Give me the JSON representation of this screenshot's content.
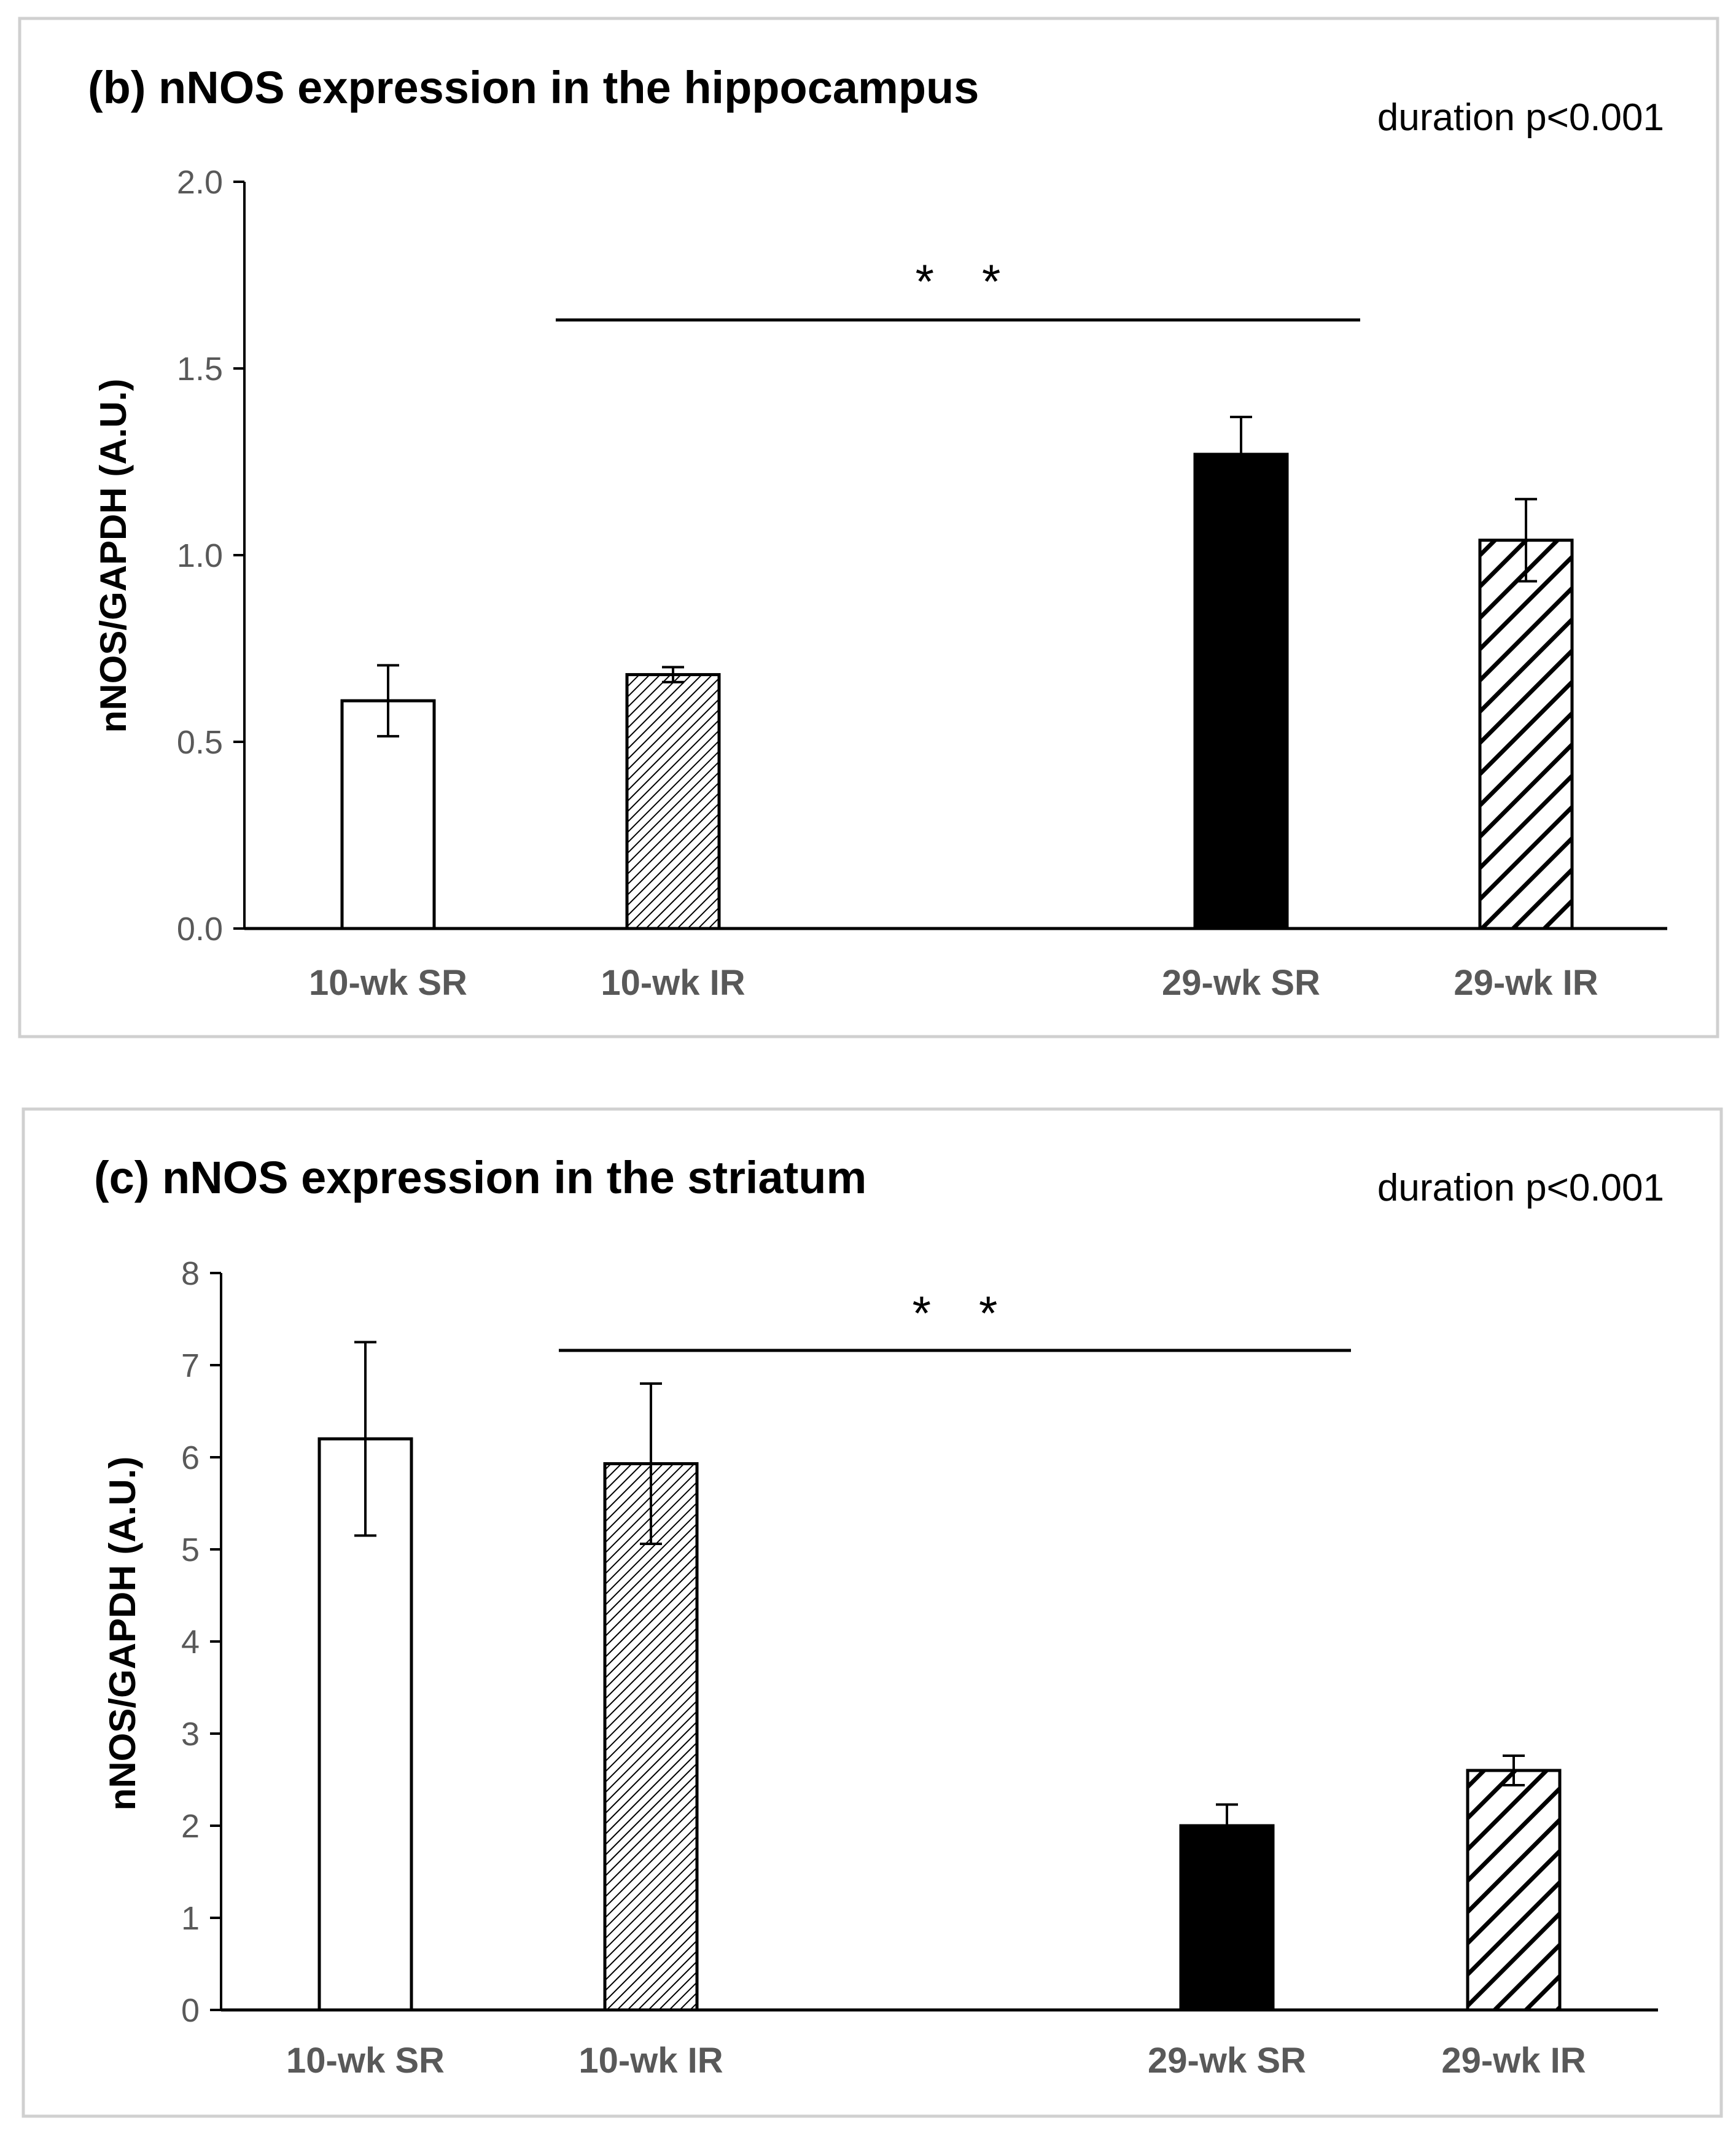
{
  "chart_data": [
    {
      "type": "bar",
      "title": "(b) nNOS expression in the hippocampus",
      "note": "duration p<0.001",
      "ylabel": "nNOS/GAPDH (A.U.)",
      "xlabel": "",
      "ylim": [
        0,
        2.0
      ],
      "yticks": [
        "0.0",
        "0.5",
        "1.0",
        "1.5",
        "2.0"
      ],
      "categories": [
        "10-wk SR",
        "10-wk IR",
        "29-wk SR",
        "29-wk IR"
      ],
      "values": [
        0.61,
        0.68,
        1.27,
        1.04
      ],
      "errors": [
        0.095,
        0.02,
        0.1,
        0.11
      ],
      "fills": [
        "white",
        "fine-hatch",
        "black",
        "wide-hatch"
      ],
      "significance": {
        "label": "* *",
        "from": "10-wk IR",
        "to": "29-wk SR"
      },
      "grid": false
    },
    {
      "type": "bar",
      "title": "(c) nNOS expression in the striatum",
      "note": "duration p<0.001",
      "ylabel": "nNOS/GAPDH (A.U.)",
      "xlabel": "",
      "ylim": [
        0,
        8
      ],
      "yticks": [
        "0",
        "1",
        "2",
        "3",
        "4",
        "5",
        "6",
        "7",
        "8"
      ],
      "categories": [
        "10-wk SR",
        "10-wk IR",
        "29-wk SR",
        "29-wk IR"
      ],
      "values": [
        6.2,
        5.93,
        2.0,
        2.6
      ],
      "errors": [
        1.05,
        0.87,
        0.23,
        0.16
      ],
      "fills": [
        "white",
        "fine-hatch",
        "black",
        "wide-hatch"
      ],
      "significance": {
        "label": "* *",
        "from": "10-wk IR",
        "to": "29-wk SR"
      },
      "grid": false
    }
  ]
}
